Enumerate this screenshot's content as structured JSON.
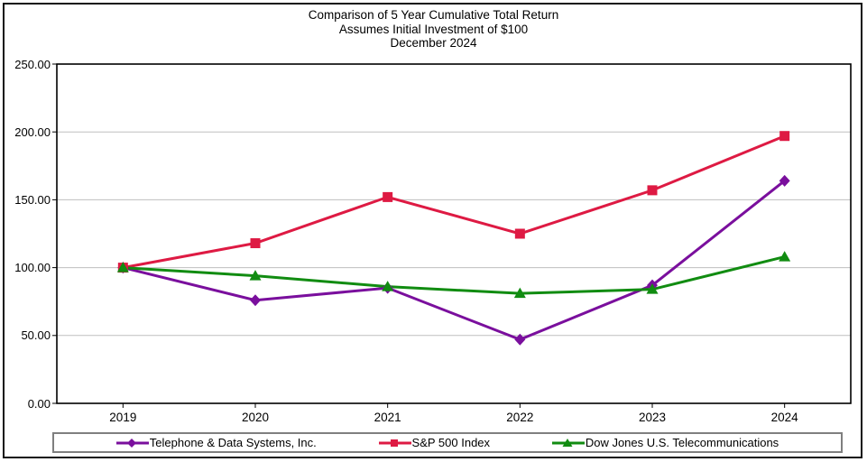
{
  "figure": {
    "title_line1": "Comparison of 5 Year Cumulative Total Return",
    "title_line2": "Assumes Initial Investment of $100",
    "title_line3": "December 2024"
  },
  "axes": {
    "y_tick_labels": [
      "250.00",
      "200.00",
      "150.00",
      "100.00",
      "50.00",
      "0.00"
    ],
    "x_tick_labels": [
      "2019",
      "2020",
      "2021",
      "2022",
      "2023",
      "2024"
    ],
    "gridline_color": "#bfbfbf",
    "axis_color": "#000000"
  },
  "chart_data": {
    "type": "line",
    "title": "Comparison of 5 Year Cumulative Total Return",
    "subtitle": "Assumes Initial Investment of $100",
    "date_label": "December 2024",
    "categories": [
      "2019",
      "2020",
      "2021",
      "2022",
      "2023",
      "2024"
    ],
    "series": [
      {
        "name": "Telephone & Data Systems, Inc.",
        "color": "#7A0F9D",
        "marker": "diamond",
        "values": [
          100,
          76,
          85,
          47,
          87,
          164
        ]
      },
      {
        "name": "S&P 500 Index",
        "color": "#DE1A43",
        "marker": "square",
        "values": [
          100,
          118,
          152,
          125,
          157,
          197
        ]
      },
      {
        "name": "Dow Jones U.S. Telecommunications",
        "color": "#118C11",
        "marker": "triangle",
        "values": [
          100,
          94,
          86,
          81,
          84,
          108
        ]
      }
    ],
    "ylim": [
      0,
      250
    ],
    "y_step": 50,
    "grid": "horizontal",
    "legend_position": "bottom"
  }
}
